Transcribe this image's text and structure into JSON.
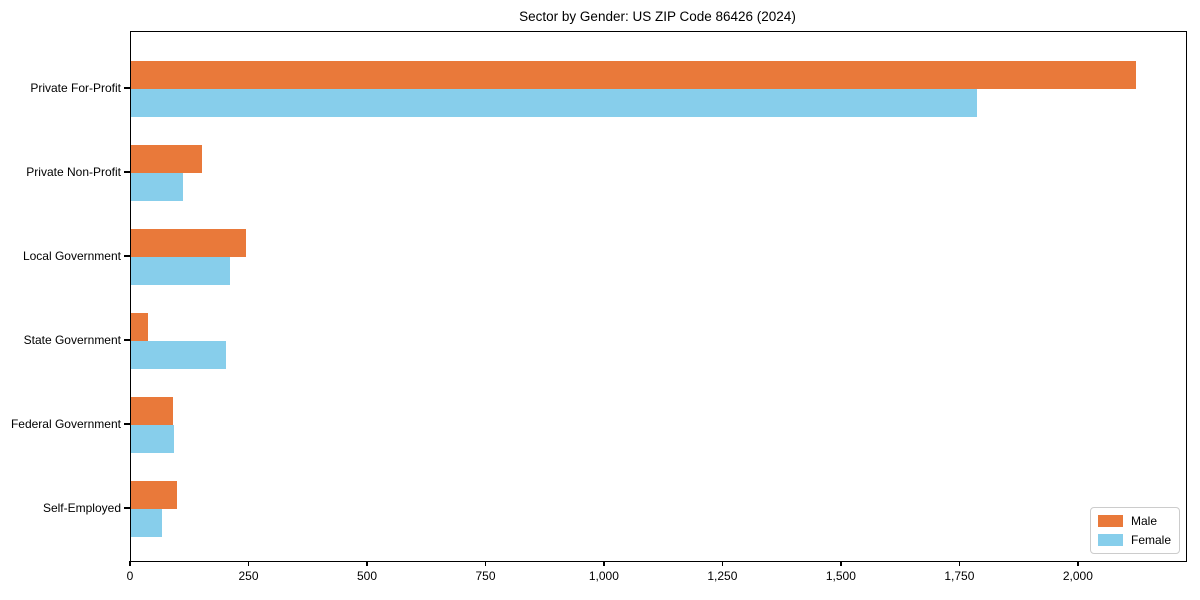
{
  "chart_data": {
    "type": "bar",
    "orientation": "horizontal",
    "title": "Sector by Gender: US ZIP Code 86426 (2024)",
    "categories": [
      "Private For-Profit",
      "Private Non-Profit",
      "Local Government",
      "State Government",
      "Federal Government",
      "Self-Employed"
    ],
    "series": [
      {
        "name": "Male",
        "color": "#E9793A",
        "values": [
          2120,
          150,
          243,
          36,
          89,
          97
        ]
      },
      {
        "name": "Female",
        "color": "#87CEEB",
        "values": [
          1785,
          110,
          209,
          201,
          91,
          65
        ]
      }
    ],
    "xlim": [
      0,
      2226
    ],
    "x_ticks": [
      0,
      250,
      500,
      750,
      1000,
      1250,
      1500,
      1750,
      2000
    ],
    "x_tick_labels": [
      "0",
      "250",
      "500",
      "750",
      "1,000",
      "1,250",
      "1,500",
      "1,750",
      "2,000"
    ],
    "grid": false,
    "legend_position": "lower right",
    "background_color": "#ffffff",
    "text_color": "#000000"
  }
}
